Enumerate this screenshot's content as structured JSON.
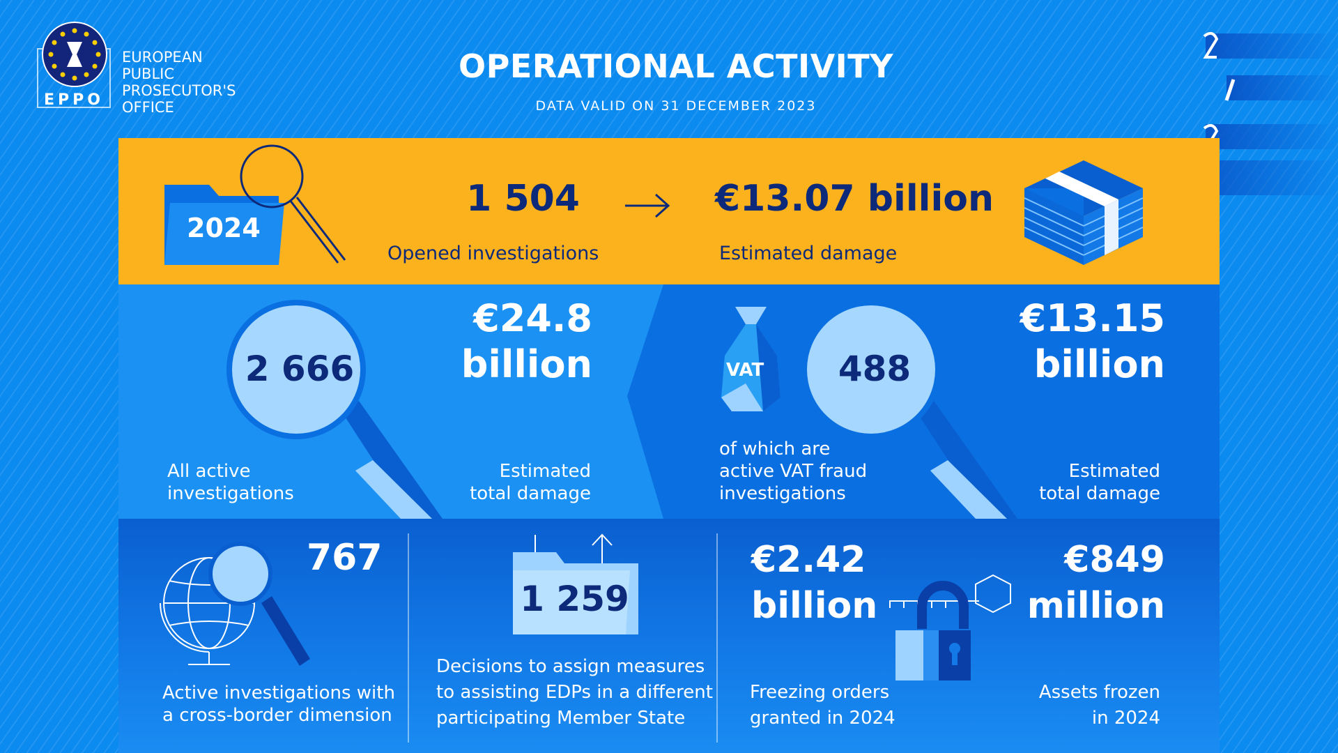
{
  "header": {
    "title": "OPERATIONAL ACTIVITY",
    "subtitle": "DATA VALID ON 31 DECEMBER 2023"
  },
  "logo": {
    "acronym": "EPPO",
    "name_lines": [
      "EUROPEAN",
      "PUBLIC",
      "PROSECUTOR'S",
      "OFFICE"
    ]
  },
  "year_panel": {
    "year": "2024",
    "opened_value": "1 504",
    "opened_label": "Opened investigations",
    "damage_value": "€13.07 billion",
    "damage_label": "Estimated damage"
  },
  "active_panel": {
    "value": "2 666",
    "label_lines": [
      "All active",
      "investigations"
    ],
    "damage_lines": [
      "€24.8",
      "billion"
    ],
    "damage_label_lines": [
      "Estimated",
      "total damage"
    ]
  },
  "vat_panel": {
    "tag": "VAT",
    "value": "488",
    "label_lines": [
      "of which are",
      "active VAT fraud",
      "investigations"
    ],
    "damage_lines": [
      "€13.15",
      "billion"
    ],
    "damage_label_lines": [
      "Estimated",
      "total damage"
    ]
  },
  "cross_border": {
    "value": "767",
    "label_lines": [
      "Active investigations with",
      "a cross-border dimension"
    ]
  },
  "decisions": {
    "value": "1 259",
    "label_lines": [
      "Decisions to assign measures",
      "to assisting EDPs in a different",
      "participating Member State"
    ]
  },
  "freezing": {
    "value_lines": [
      "€2.42",
      "billion"
    ],
    "label_lines": [
      "Freezing orders",
      "granted in 2024"
    ]
  },
  "assets": {
    "value_lines": [
      "€849",
      "million"
    ],
    "label_lines": [
      "Assets frozen",
      "in 2024"
    ]
  },
  "colors": {
    "orange": "#fcb21d",
    "navy": "#0d2a7a",
    "blue": "#0b8af0"
  }
}
